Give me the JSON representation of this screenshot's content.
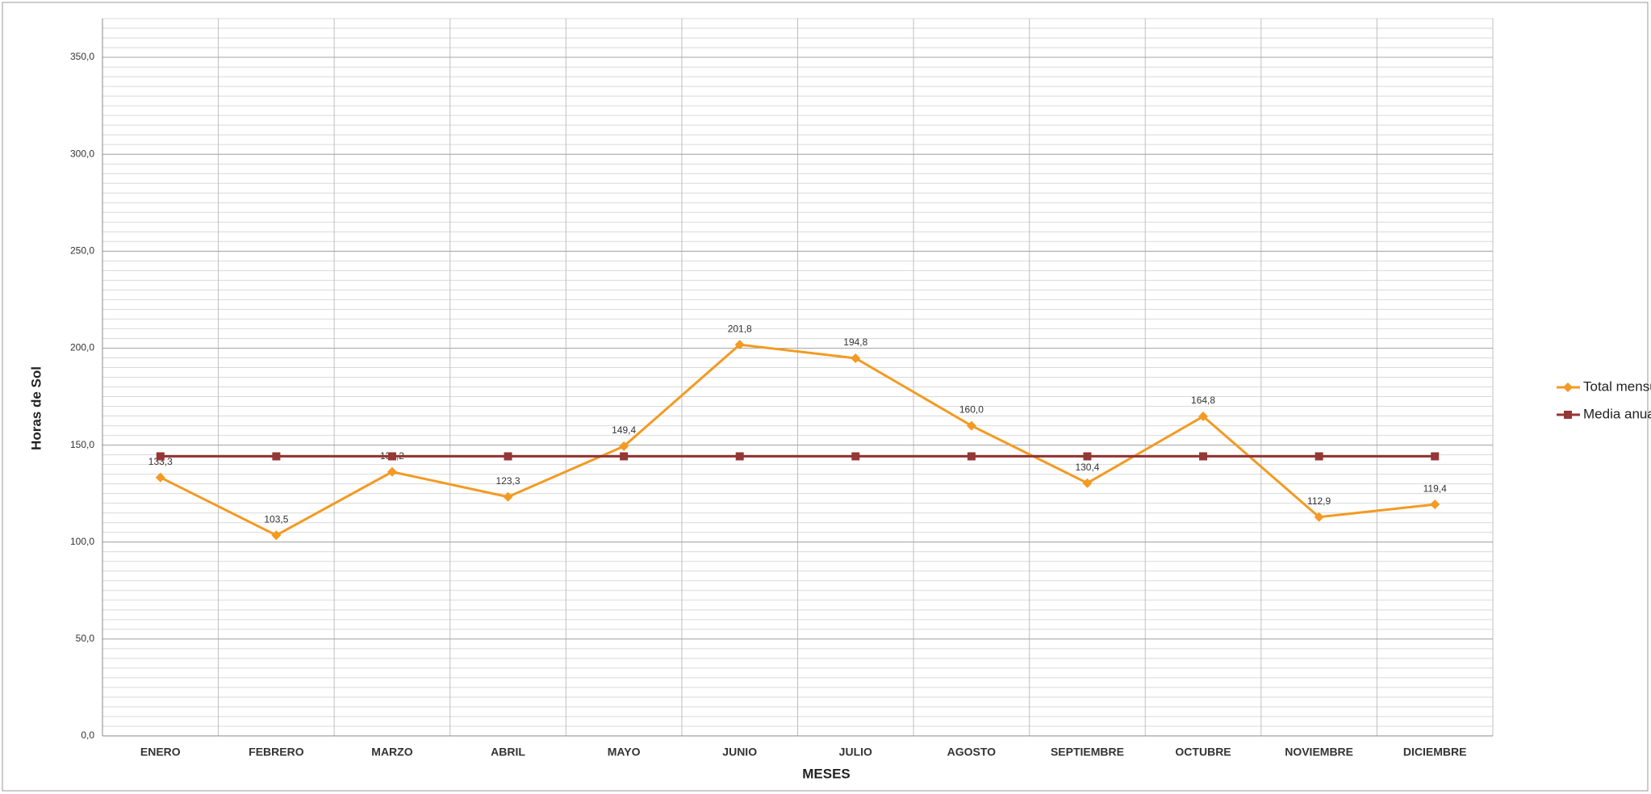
{
  "chart_data": {
    "type": "line",
    "x_label": "MESES",
    "y_label": "Horas de Sol",
    "categories": [
      "ENERO",
      "FEBRERO",
      "MARZO",
      "ABRIL",
      "MAYO",
      "JUNIO",
      "JULIO",
      "AGOSTO",
      "SEPTIEMBRE",
      "OCTUBRE",
      "NOVIEMBRE",
      "DICIEMBRE"
    ],
    "series": [
      {
        "name": "Total mensual",
        "color": "#f39a22",
        "marker": "diamond",
        "values": [
          133.3,
          103.5,
          136.2,
          123.3,
          149.4,
          201.8,
          194.8,
          160.0,
          130.4,
          164.8,
          112.9,
          119.4
        ],
        "value_labels": [
          "133,3",
          "103,5",
          "136,2",
          "123,3",
          "149,4",
          "201,8",
          "194,8",
          "160,0",
          "130,4",
          "164,8",
          "112,9",
          "119,4"
        ]
      },
      {
        "name": "Media anual",
        "color": "#953735",
        "marker": "square",
        "values": [
          144.2,
          144.2,
          144.2,
          144.2,
          144.2,
          144.2,
          144.2,
          144.2,
          144.2,
          144.2,
          144.2,
          144.2
        ]
      }
    ],
    "ylim": [
      0,
      370
    ],
    "yticks": [
      {
        "value": 0,
        "label": "0,0"
      },
      {
        "value": 50,
        "label": "50,0"
      },
      {
        "value": 100,
        "label": "100,0"
      },
      {
        "value": 150,
        "label": "150,0"
      },
      {
        "value": 200,
        "label": "200,0"
      },
      {
        "value": 250,
        "label": "250,0"
      },
      {
        "value": 300,
        "label": "300,0"
      },
      {
        "value": 350,
        "label": "350,0"
      }
    ],
    "grid": true,
    "legend": "right"
  }
}
